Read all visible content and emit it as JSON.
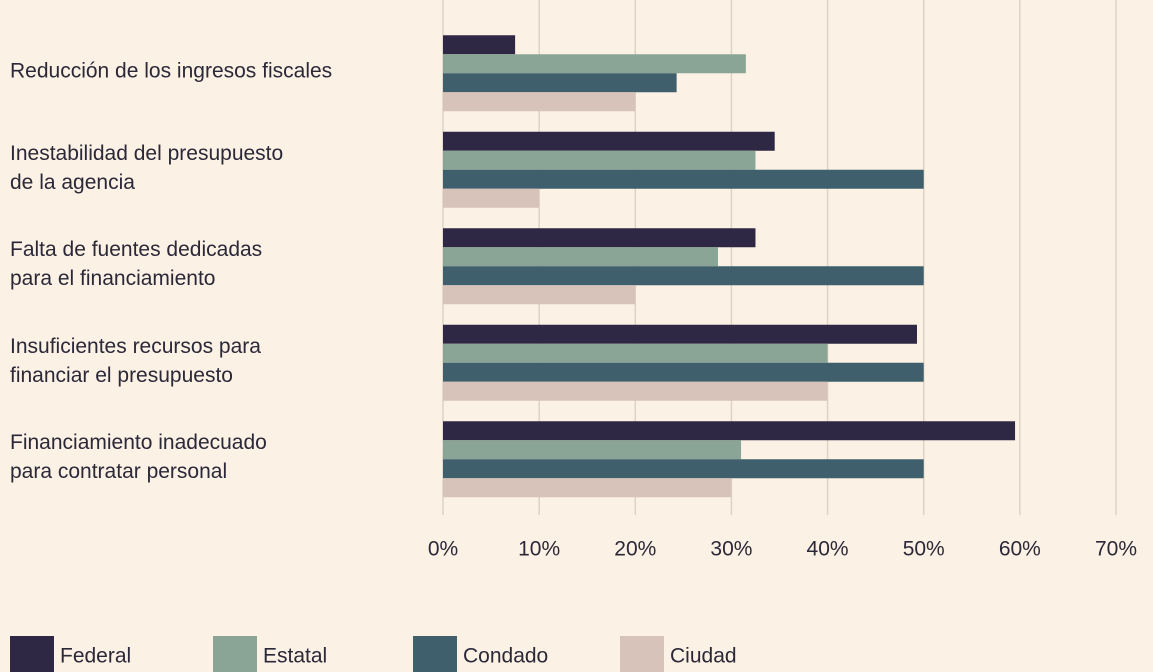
{
  "chart_data": {
    "type": "bar",
    "orientation": "horizontal",
    "categories": [
      "Reducción de los ingresos fiscales",
      "Inestabilidad del presupuesto\nde la agencia",
      "Falta de fuentes dedicadas\npara el financiamiento",
      "Insuficientes recursos para\nfinanciar el presupuesto",
      "Financiamiento inadecuado\npara contratar personal"
    ],
    "series": [
      {
        "name": "Federal",
        "color": "#2f2844",
        "values": [
          7.5,
          34.5,
          32.5,
          49.3,
          59.5
        ]
      },
      {
        "name": "Estatal",
        "color": "#8aa595",
        "values": [
          31.5,
          32.5,
          28.6,
          40,
          31
        ]
      },
      {
        "name": "Condado",
        "color": "#3f5f6d",
        "values": [
          24.3,
          50,
          50,
          50,
          50
        ]
      },
      {
        "name": "Ciudad",
        "color": "#d8c3bb",
        "values": [
          20,
          10,
          20,
          40,
          30
        ]
      }
    ],
    "xlim": [
      0,
      70
    ],
    "xticks": [
      {
        "value": 0,
        "label": "0%"
      },
      {
        "value": 10,
        "label": "10%"
      },
      {
        "value": 20,
        "label": "20%"
      },
      {
        "value": 30,
        "label": "30%"
      },
      {
        "value": 40,
        "label": "40%"
      },
      {
        "value": 50,
        "label": "50%"
      },
      {
        "value": 60,
        "label": "60%"
      },
      {
        "value": 70,
        "label": "70%"
      }
    ],
    "grid": true,
    "legend": "bottom"
  }
}
